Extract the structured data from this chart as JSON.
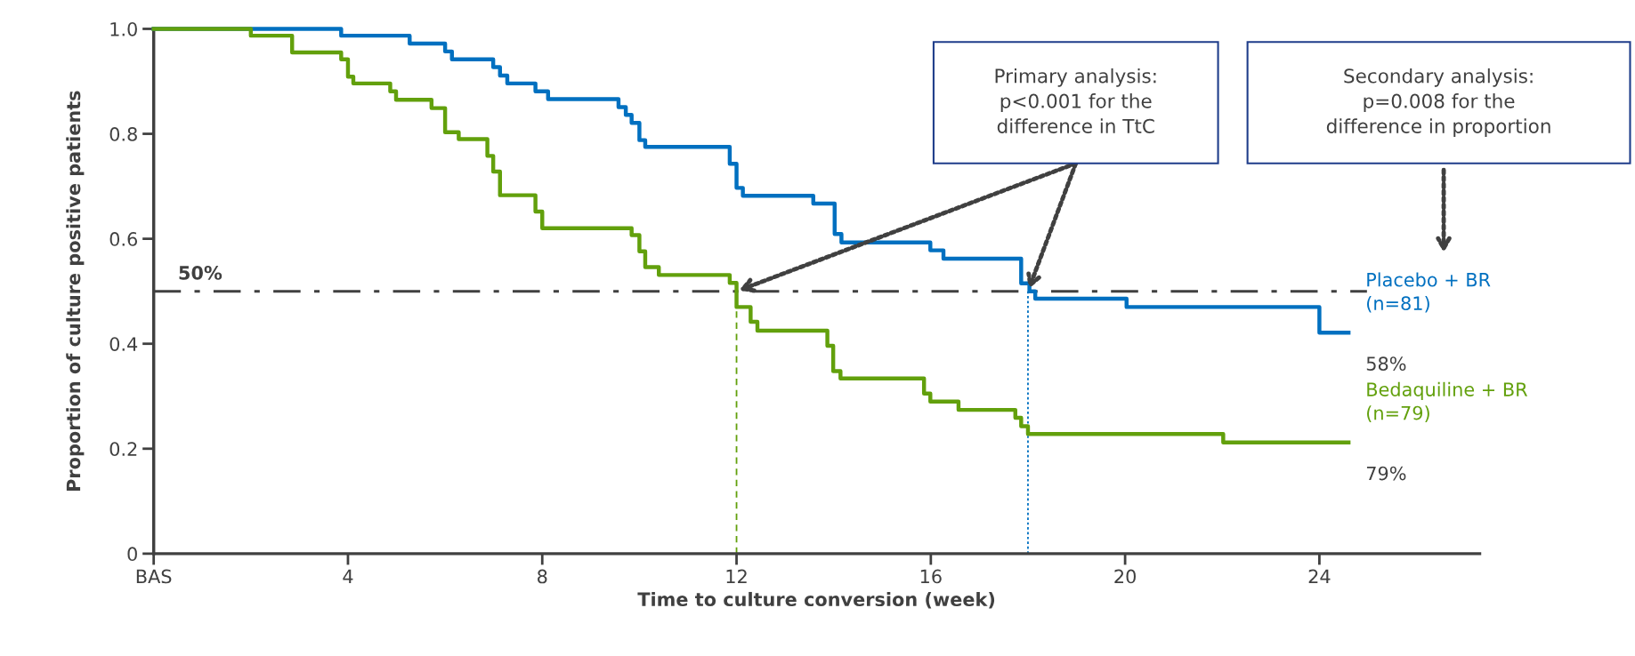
{
  "chart_data": {
    "type": "step",
    "xlabel": "Time to culture conversion (week)",
    "ylabel": "Proportion of culture positive patients",
    "xlim": [
      0,
      27.3
    ],
    "ylim": [
      0,
      1.0
    ],
    "xticks": [
      {
        "value": 0,
        "label": "BAS"
      },
      4,
      8,
      12,
      16,
      20,
      24
    ],
    "yticks": [
      0,
      {
        "value": 0.2,
        "label": "0.2"
      },
      {
        "value": 0.4,
        "label": "0.4"
      },
      {
        "value": 0.6,
        "label": "0.6"
      },
      {
        "value": 0.8,
        "label": "0.8"
      },
      {
        "value": 1.0,
        "label": "1.0"
      }
    ],
    "grid": false,
    "legend": false,
    "line_style": "solid",
    "marker": "none",
    "series": [
      {
        "name": "Placebo + BR\n(n=81)",
        "color": "#0070c0",
        "x": [
          0,
          3.86,
          5.27,
          6.0,
          6.14,
          6.99,
          7.13,
          7.28,
          7.86,
          8.12,
          9.57,
          9.72,
          9.84,
          10.0,
          10.12,
          11.86,
          12.0,
          12.13,
          13.58,
          14.02,
          14.16,
          15.99,
          16.26,
          17.86,
          18.03,
          18.15,
          20.03,
          24.0,
          24.6
        ],
        "values": [
          1.0,
          0.987,
          0.972,
          0.957,
          0.942,
          0.927,
          0.911,
          0.896,
          0.881,
          0.866,
          0.851,
          0.836,
          0.821,
          0.788,
          0.775,
          0.743,
          0.697,
          0.682,
          0.667,
          0.609,
          0.593,
          0.578,
          0.562,
          0.515,
          0.5,
          0.486,
          0.47,
          0.421,
          0.421
        ]
      },
      {
        "name": "Bedaquiline + BR\n(n=79)",
        "color": "#62a00c",
        "x": [
          0,
          2.0,
          2.85,
          3.86,
          4.0,
          4.11,
          4.87,
          4.99,
          5.72,
          6.0,
          6.28,
          6.87,
          6.99,
          7.13,
          7.86,
          8.0,
          9.84,
          10.0,
          10.12,
          10.4,
          11.86,
          12.0,
          12.29,
          12.43,
          13.87,
          13.99,
          14.14,
          15.86,
          15.99,
          16.57,
          17.74,
          17.86,
          18.0,
          22.02,
          24.6
        ],
        "values": [
          1.0,
          0.987,
          0.955,
          0.942,
          0.909,
          0.896,
          0.881,
          0.865,
          0.849,
          0.803,
          0.79,
          0.758,
          0.728,
          0.683,
          0.652,
          0.62,
          0.607,
          0.576,
          0.546,
          0.531,
          0.516,
          0.47,
          0.442,
          0.425,
          0.396,
          0.348,
          0.334,
          0.305,
          0.29,
          0.274,
          0.259,
          0.243,
          0.228,
          0.212,
          0.212
        ]
      }
    ],
    "ref_lines": [
      {
        "axis": "y",
        "value": 0.5,
        "label": "50%",
        "color": "#404040",
        "line_style": "dashdot"
      },
      {
        "axis": "x",
        "value": 12,
        "color": "#62a00c",
        "line_style": "dashed"
      },
      {
        "axis": "x",
        "value": 18,
        "color": "#0070c0",
        "line_style": "dotted"
      }
    ],
    "annotations": [
      "Primary analysis:\np<0.001 for the\ndifference in TtC",
      "Secondary analysis:\np=0.008 for the\ndifference in proportion",
      "58%",
      "79%"
    ]
  }
}
